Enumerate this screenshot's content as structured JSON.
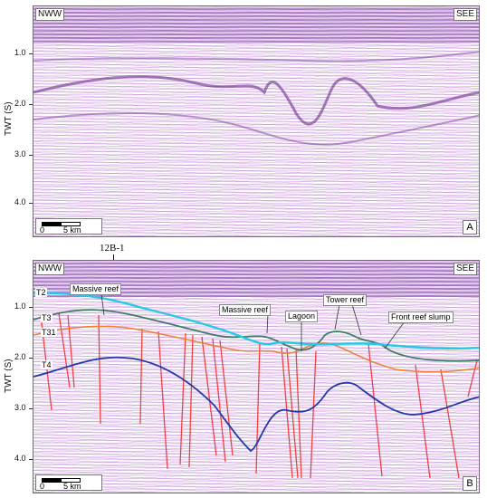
{
  "y_axis": {
    "title": "TWT (S)",
    "ticks": [
      "1.0",
      "2.0",
      "3.0",
      "4.0"
    ]
  },
  "panel_a": {
    "left_dir": "NWW",
    "right_dir": "SEE",
    "letter": "A",
    "scale_zero": "0",
    "scale_five": "5 km"
  },
  "panel_b": {
    "left_dir": "NWW",
    "right_dir": "SEE",
    "letter": "B",
    "scale_zero": "0",
    "scale_five": "5 km",
    "well_name": "12B-1",
    "horizons": [
      "T2",
      "T3",
      "T31",
      "T4"
    ],
    "annotations": [
      "Massive reef",
      "Massive reef",
      "Lagoon",
      "Tower reef",
      "Front reef slump"
    ],
    "colors": {
      "T2": "#29c7e8",
      "T3": "#3f7d6b",
      "T31": "#f07d3a",
      "T4": "#1f3aa8",
      "faults": "#f04040"
    }
  }
}
